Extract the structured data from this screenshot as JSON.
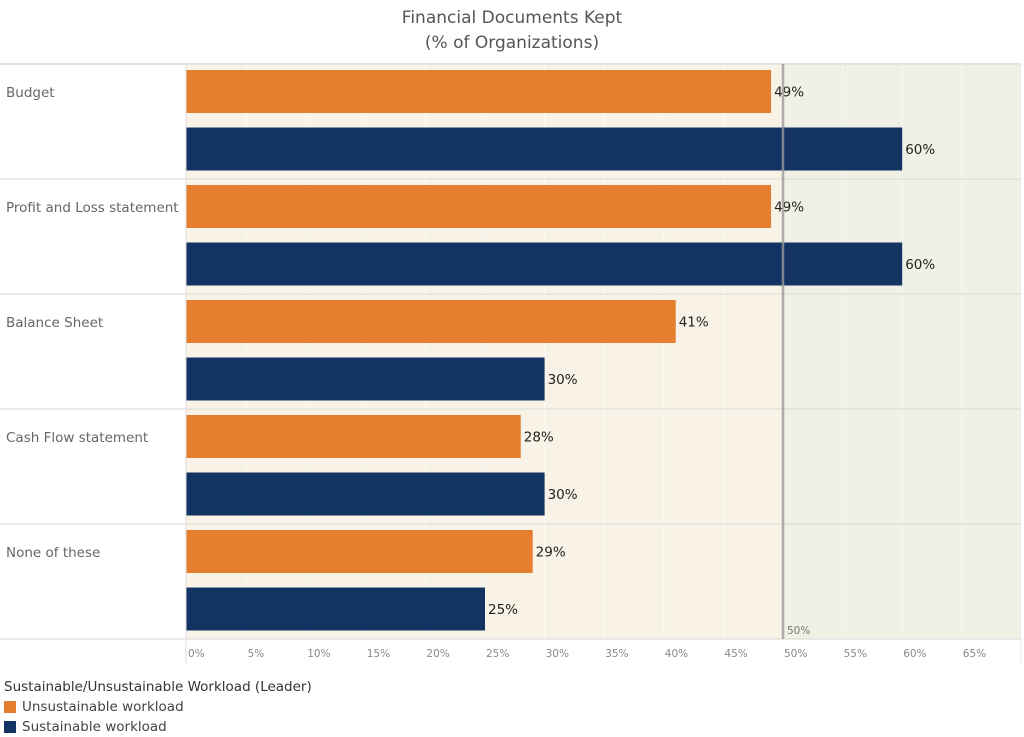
{
  "chart_data": {
    "type": "bar",
    "orientation": "horizontal",
    "title": "Financial Documents Kept",
    "subtitle": "(% of Organizations)",
    "categories": [
      "Budget",
      "Profit and Loss statement",
      "Balance Sheet",
      "Cash Flow statement",
      "None of these"
    ],
    "series": [
      {
        "name": "Unsustainable workload",
        "color": "#E67E30",
        "values": [
          49,
          49,
          41,
          28,
          29
        ]
      },
      {
        "name": "Sustainable workload",
        "color": "#133463",
        "values": [
          60,
          60,
          30,
          30,
          25
        ]
      }
    ],
    "data_labels": [
      [
        "49%",
        "49%",
        "41%",
        "28%",
        "29%"
      ],
      [
        "60%",
        "60%",
        "30%",
        "30%",
        "25%"
      ]
    ],
    "xlabel": "",
    "ylabel": "",
    "xlim": [
      0,
      70
    ],
    "x_ticks": [
      0,
      5,
      10,
      15,
      20,
      25,
      30,
      35,
      40,
      45,
      50,
      55,
      60,
      65
    ],
    "x_tick_labels": [
      "0%",
      "5%",
      "10%",
      "15%",
      "20%",
      "25%",
      "30%",
      "35%",
      "40%",
      "45%",
      "50%",
      "55%",
      "60%",
      "65%"
    ],
    "reference_line": {
      "value": 50,
      "label": "50%"
    },
    "shading": [
      {
        "from": 0,
        "to": 50,
        "color": "#F9F3E7"
      },
      {
        "from": 50,
        "to": 70,
        "color": "#EEF1E3"
      }
    ],
    "grid": true,
    "legend": {
      "title": "Sustainable/Unsustainable Workload (Leader)",
      "position": "bottom-left"
    }
  }
}
